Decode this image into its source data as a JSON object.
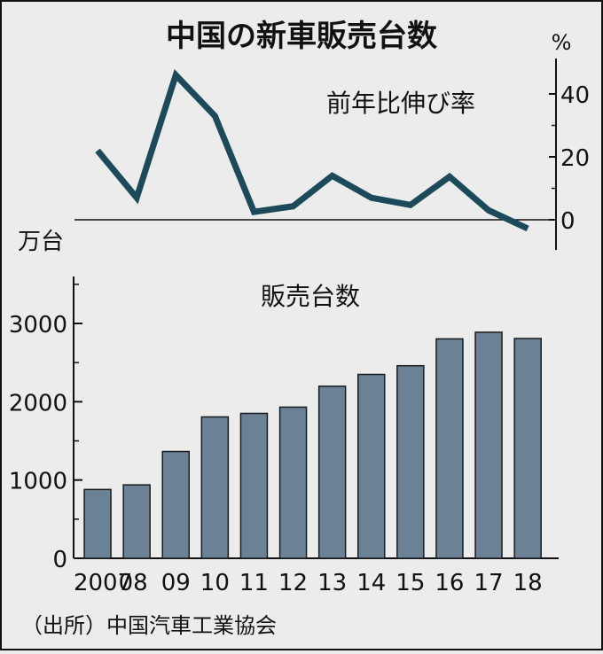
{
  "title": "中国の新車販売台数",
  "source": "（出所）中国汽車工業協会",
  "colors": {
    "background": "#ececec",
    "line": "#1d4a5a",
    "bar": "#6b8296",
    "axis": "#111111"
  },
  "chart_data": [
    {
      "type": "line",
      "label": "前年比伸び率",
      "unit": "%",
      "x": [
        "2007",
        "08",
        "09",
        "10",
        "11",
        "12",
        "13",
        "14",
        "15",
        "16",
        "17",
        "18"
      ],
      "values": [
        22,
        7,
        46,
        33,
        2.5,
        4.3,
        14,
        7,
        4.7,
        13.7,
        3,
        -2.8
      ],
      "ylim": [
        -8,
        50
      ],
      "yticks": [
        "0",
        "20",
        "40"
      ]
    },
    {
      "type": "bar",
      "label": "販売台数",
      "unit": "万台",
      "categories": [
        "2007",
        "08",
        "09",
        "10",
        "11",
        "12",
        "13",
        "14",
        "15",
        "16",
        "17",
        "18"
      ],
      "values": [
        879,
        938,
        1364,
        1806,
        1851,
        1931,
        2198,
        2349,
        2460,
        2803,
        2888,
        2808
      ],
      "ylim": [
        0,
        3600
      ],
      "yticks": [
        "0",
        "1000",
        "2000",
        "3000"
      ]
    }
  ]
}
